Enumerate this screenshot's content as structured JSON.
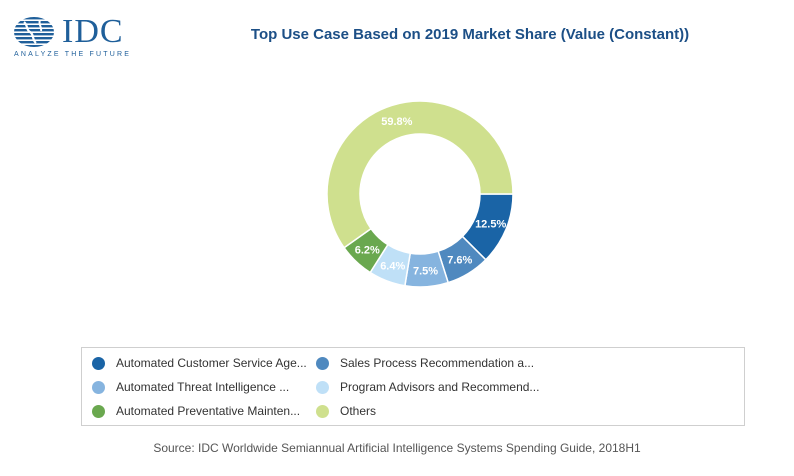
{
  "header": {
    "brand": "IDC",
    "tagline": "ANALYZE THE FUTURE"
  },
  "chart_data": {
    "type": "pie",
    "style": "donut",
    "title": "Top Use Case Based on 2019 Market Share (Value (Constant))",
    "slices": [
      {
        "label": "Automated Customer Service Age...",
        "value": 12.5,
        "value_label": "12.5%",
        "color": "#1a64a6"
      },
      {
        "label": "Sales Process Recommendation a...",
        "value": 7.6,
        "value_label": "7.6%",
        "color": "#4f89bf"
      },
      {
        "label": "Automated Threat Intelligence ...",
        "value": 7.5,
        "value_label": "7.5%",
        "color": "#86b4df"
      },
      {
        "label": "Program Advisors and Recommend...",
        "value": 6.4,
        "value_label": "6.4%",
        "color": "#bfe0f7"
      },
      {
        "label": "Automated Preventative Mainten...",
        "value": 6.2,
        "value_label": "6.2%",
        "color": "#6aa84f"
      },
      {
        "label": "Others",
        "value": 59.8,
        "value_label": "59.8%",
        "color": "#cfe08e"
      }
    ],
    "legend_position": "bottom"
  },
  "footer": {
    "source": "Source: IDC Worldwide Semiannual Artificial Intelligence Systems Spending Guide, 2018H1"
  }
}
